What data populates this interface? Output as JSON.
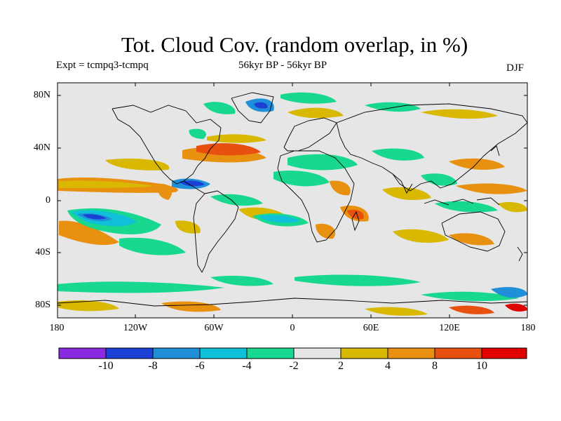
{
  "header": {
    "title": "Tot. Cloud Cov. (random overlap, in %)",
    "experiment": "Expt = tcmpq3-tcmpq",
    "period": "56kyr BP - 56kyr BP",
    "season": "DJF"
  },
  "map": {
    "background_color": "#e6e6e6",
    "lat_labels": [
      "80N",
      "40N",
      "0",
      "40S",
      "80S"
    ],
    "lon_labels": [
      "180",
      "120W",
      "60W",
      "0",
      "60E",
      "120E",
      "180"
    ]
  },
  "colorbar": {
    "colors": [
      "#8a2be2",
      "#1c3fd6",
      "#1e8fd8",
      "#10c0d8",
      "#18d890",
      "#e6e6e6",
      "#d8b800",
      "#e89010",
      "#e85010",
      "#e00000"
    ],
    "labels": [
      "-10",
      "-8",
      "-6",
      "-4",
      "-2",
      "2",
      "4",
      "8",
      "10"
    ]
  }
}
